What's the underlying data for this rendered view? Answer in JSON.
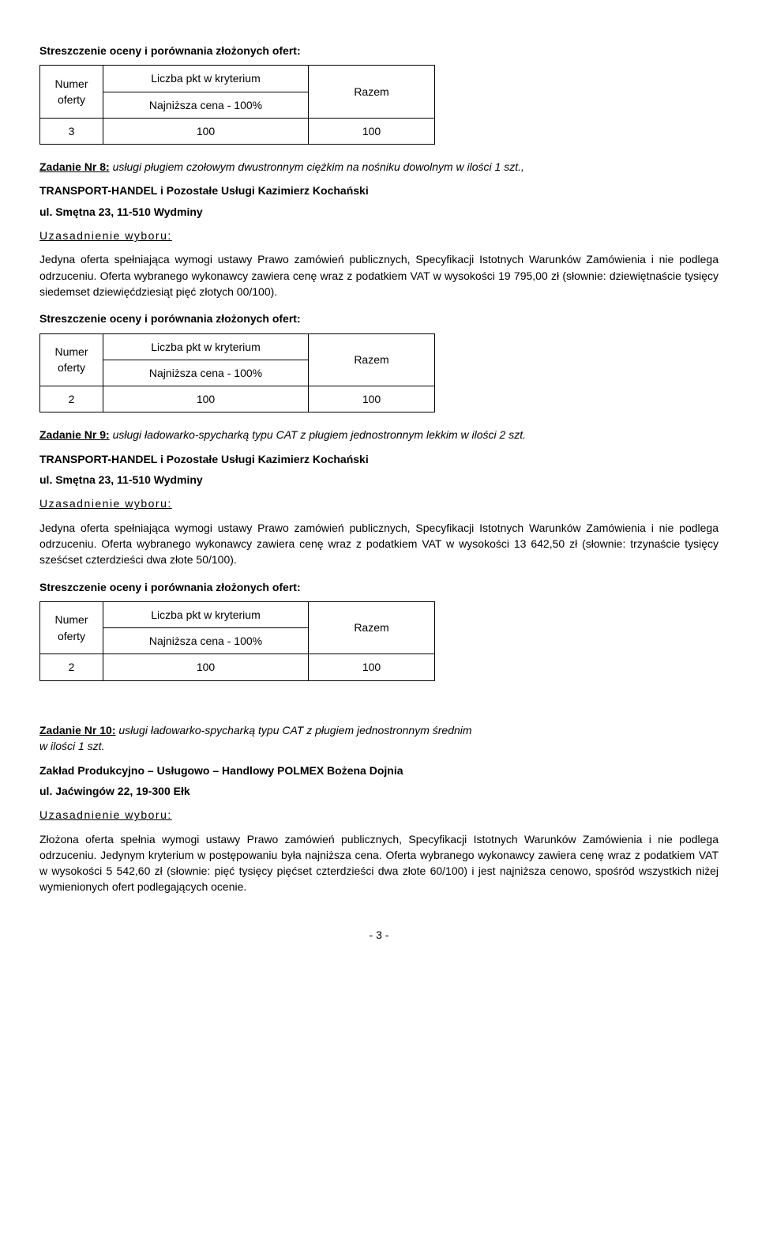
{
  "heading_summary": "Streszczenie oceny i porównania złożonych ofert:",
  "table_headers": {
    "num_line1": "Numer",
    "num_line2": "oferty",
    "crit_line1": "Liczba pkt w kryterium",
    "crit_line2": "Najniższa cena - 100%",
    "sum": "Razem"
  },
  "uzasadnienie_label": "Uzasadnienie wyboru:",
  "task8": {
    "label": "Zadanie Nr 8:",
    "desc": " usługi pługiem czołowym dwustronnym ciężkim na nośniku dowolnym w ilości 1 szt.,",
    "company_line1": "TRANSPORT-HANDEL i Pozostałe Usługi Kazimierz Kochański",
    "company_line2": "ul. Smętna 23, 11-510 Wydminy",
    "justification": "Jedyna oferta spełniająca wymogi ustawy Prawo zamówień publicznych, Specyfikacji Istotnych Warunków Zamówienia i nie podlega odrzuceniu. Oferta wybranego wykonawcy zawiera cenę wraz z podatkiem VAT w wysokości 19 795,00 zł (słownie: dziewiętnaście tysięcy siedemset dziewięćdziesiąt pięć złotych 00/100).",
    "row": {
      "num": "3",
      "pts": "100",
      "sum": "100"
    },
    "row2": {
      "num": "2",
      "pts": "100",
      "sum": "100"
    }
  },
  "task9": {
    "label": "Zadanie Nr 9:",
    "desc": " usługi  ładowarko-spycharką typu CAT z pługiem jednostronnym lekkim w ilości 2 szt.",
    "company_line1": "TRANSPORT-HANDEL i Pozostałe Usługi Kazimierz Kochański",
    "company_line2": "ul. Smętna 23, 11-510 Wydminy",
    "justification": "Jedyna oferta spełniająca wymogi ustawy Prawo zamówień publicznych, Specyfikacji Istotnych Warunków Zamówienia i nie podlega odrzuceniu. Oferta wybranego wykonawcy zawiera cenę wraz z podatkiem VAT w wysokości 13 642,50 zł (słownie: trzynaście  tysięcy sześćset czterdzieści dwa złote 50/100).",
    "row": {
      "num": "2",
      "pts": "100",
      "sum": "100"
    }
  },
  "task10": {
    "label": "Zadanie Nr 10:",
    "desc": " usługi  ładowarko-spycharką typu CAT z pługiem jednostronnym średnim",
    "desc2": "w ilości 1 szt.",
    "company_line1": "Zakład Produkcyjno – Usługowo – Handlowy POLMEX Bożena Dojnia",
    "company_line2": "ul. Jaćwingów 22, 19-300 Ełk",
    "justification": "Złożona oferta spełnia wymogi ustawy Prawo zamówień publicznych, Specyfikacji Istotnych Warunków Zamówienia i nie podlega odrzuceniu. Jedynym kryterium w postępowaniu była najniższa cena. Oferta wybranego wykonawcy zawiera cenę wraz z podatkiem VAT w wysokości 5 542,60 zł (słownie: pięć tysięcy pięćset czterdzieści dwa złote 60/100) i jest najniższa cenowo, spośród wszystkich niżej wymienionych ofert podlegających ocenie."
  },
  "page_number": "- 3 -"
}
